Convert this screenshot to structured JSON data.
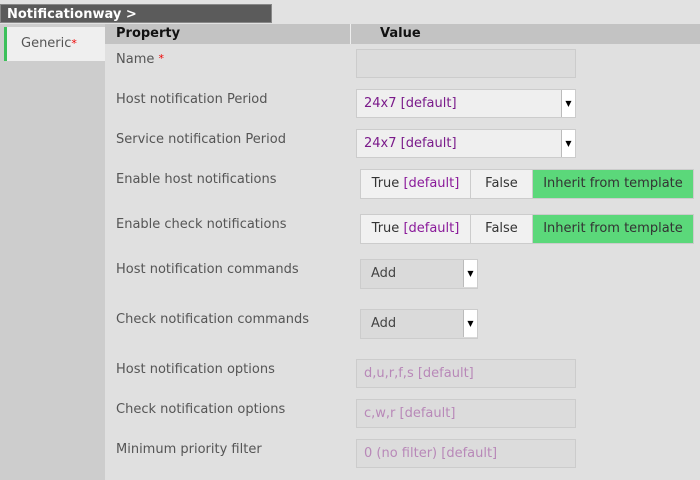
{
  "breadcrumb": "Notificationway >",
  "tabs": [
    {
      "label": "Generic",
      "required": "*"
    }
  ],
  "table": {
    "col_property": "Property",
    "col_value": "Value"
  },
  "rows": {
    "name": {
      "label": "Name",
      "required": "*",
      "value": ""
    },
    "host_period": {
      "label": "Host notification Period",
      "value": "24x7 [default]"
    },
    "service_period": {
      "label": "Service notification Period",
      "value": "24x7 [default]"
    },
    "enable_host": {
      "label": "Enable host notifications",
      "true": "True",
      "default": "[default]",
      "false": "False",
      "inherit": "Inherit from template",
      "selected": "Inherit from template"
    },
    "enable_check": {
      "label": "Enable check notifications",
      "true": "True",
      "default": "[default]",
      "false": "False",
      "inherit": "Inherit from template",
      "selected": "Inherit from template"
    },
    "host_cmds": {
      "label": "Host notification commands",
      "value": "Add"
    },
    "check_cmds": {
      "label": "Check notification commands",
      "value": "Add"
    },
    "host_opts": {
      "label": "Host notification options",
      "placeholder": "d,u,r,f,s [default]"
    },
    "check_opts": {
      "label": "Check notification options",
      "placeholder": "c,w,r [default]"
    },
    "min_priority": {
      "label": "Minimum priority filter",
      "placeholder": "0 (no filter) [default]"
    }
  },
  "colors": {
    "active": "#5bd87a",
    "required": "#ee0000",
    "default_text": "#8a1a9a"
  }
}
